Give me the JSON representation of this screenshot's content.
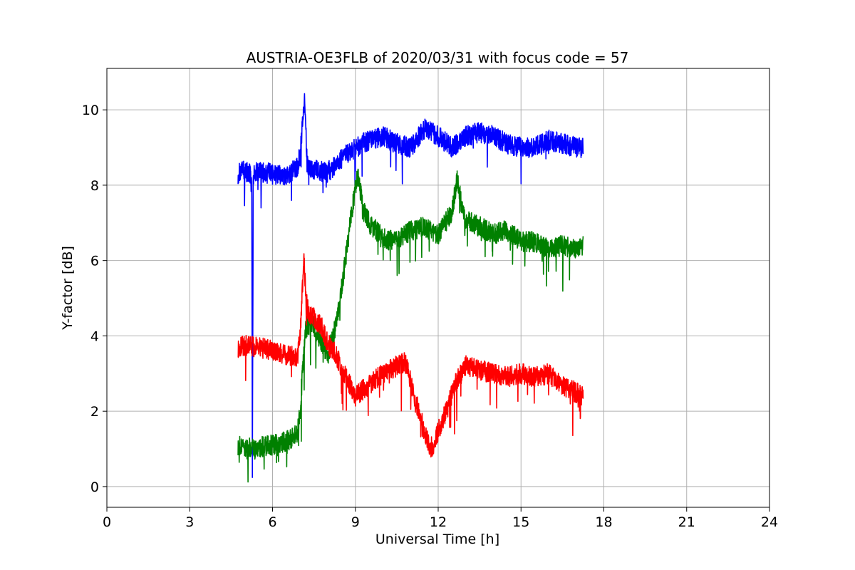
{
  "chart_data": {
    "type": "line",
    "title": "AUSTRIA-OE3FLB of 2020/03/31 with focus code = 57",
    "xlabel": "Universal Time [h]",
    "ylabel": "Y-factor [dB]",
    "xlim": [
      0,
      24
    ],
    "ylim": [
      -0.55,
      11.1
    ],
    "xticks": [
      0,
      3,
      6,
      9,
      12,
      15,
      18,
      21,
      24
    ],
    "yticks": [
      0,
      2,
      4,
      6,
      8,
      10
    ],
    "grid": true,
    "series": [
      {
        "color": "#0000ff",
        "x": [
          4.75,
          5.0,
          5.2,
          5.25,
          5.27,
          5.3,
          5.5,
          6.0,
          6.5,
          6.9,
          7.0,
          7.05,
          7.1,
          7.15,
          7.2,
          7.25,
          7.3,
          7.5,
          8.0,
          8.5,
          9.0,
          9.5,
          10.0,
          10.5,
          11.0,
          11.5,
          12.0,
          12.5,
          13.0,
          13.5,
          14.0,
          14.5,
          15.0,
          15.5,
          16.0,
          16.5,
          17.0,
          17.25
        ],
        "y": [
          8.3,
          8.4,
          8.3,
          7.8,
          0.0,
          8.3,
          8.35,
          8.3,
          8.2,
          8.5,
          8.8,
          9.3,
          9.8,
          10.3,
          9.6,
          8.6,
          8.4,
          8.4,
          8.35,
          8.7,
          9.0,
          9.2,
          9.3,
          9.1,
          9.0,
          9.5,
          9.3,
          9.0,
          9.3,
          9.4,
          9.3,
          9.1,
          9.0,
          9.0,
          9.2,
          9.1,
          9.0,
          9.0
        ]
      },
      {
        "color": "#008000",
        "x": [
          4.75,
          5.0,
          5.5,
          6.0,
          6.5,
          6.9,
          7.0,
          7.1,
          7.2,
          7.4,
          7.6,
          7.8,
          8.0,
          8.2,
          8.4,
          8.6,
          8.8,
          9.0,
          9.1,
          9.3,
          9.5,
          10.0,
          10.5,
          11.0,
          11.5,
          12.0,
          12.5,
          12.7,
          12.9,
          13.0,
          13.5,
          14.0,
          14.5,
          15.0,
          15.5,
          16.0,
          16.5,
          17.0,
          17.25
        ],
        "y": [
          1.1,
          1.0,
          1.05,
          1.1,
          1.2,
          1.4,
          2.0,
          3.2,
          4.2,
          4.4,
          4.1,
          3.8,
          3.5,
          4.0,
          4.7,
          5.8,
          6.9,
          8.0,
          8.2,
          7.3,
          7.0,
          6.6,
          6.5,
          6.8,
          6.9,
          6.7,
          7.3,
          8.2,
          7.2,
          7.1,
          6.9,
          6.7,
          6.8,
          6.5,
          6.5,
          6.3,
          6.4,
          6.3,
          6.4
        ]
      },
      {
        "color": "#ff0000",
        "x": [
          4.75,
          5.0,
          5.5,
          6.0,
          6.5,
          6.9,
          7.0,
          7.1,
          7.15,
          7.2,
          7.3,
          7.5,
          7.8,
          8.0,
          8.3,
          8.6,
          9.0,
          9.5,
          10.0,
          10.5,
          10.8,
          11.0,
          11.3,
          11.5,
          11.7,
          11.9,
          12.0,
          12.3,
          12.6,
          13.0,
          13.5,
          14.0,
          14.5,
          15.0,
          15.5,
          16.0,
          16.5,
          17.0,
          17.25
        ],
        "y": [
          3.7,
          3.75,
          3.7,
          3.6,
          3.5,
          3.4,
          4.0,
          5.5,
          6.1,
          5.0,
          4.6,
          4.5,
          4.2,
          3.8,
          3.5,
          3.0,
          2.4,
          2.7,
          3.0,
          3.2,
          3.3,
          2.8,
          2.0,
          1.5,
          1.0,
          1.2,
          1.5,
          2.0,
          2.7,
          3.2,
          3.1,
          3.0,
          2.9,
          3.0,
          2.9,
          3.0,
          2.7,
          2.5,
          2.4
        ]
      }
    ]
  }
}
